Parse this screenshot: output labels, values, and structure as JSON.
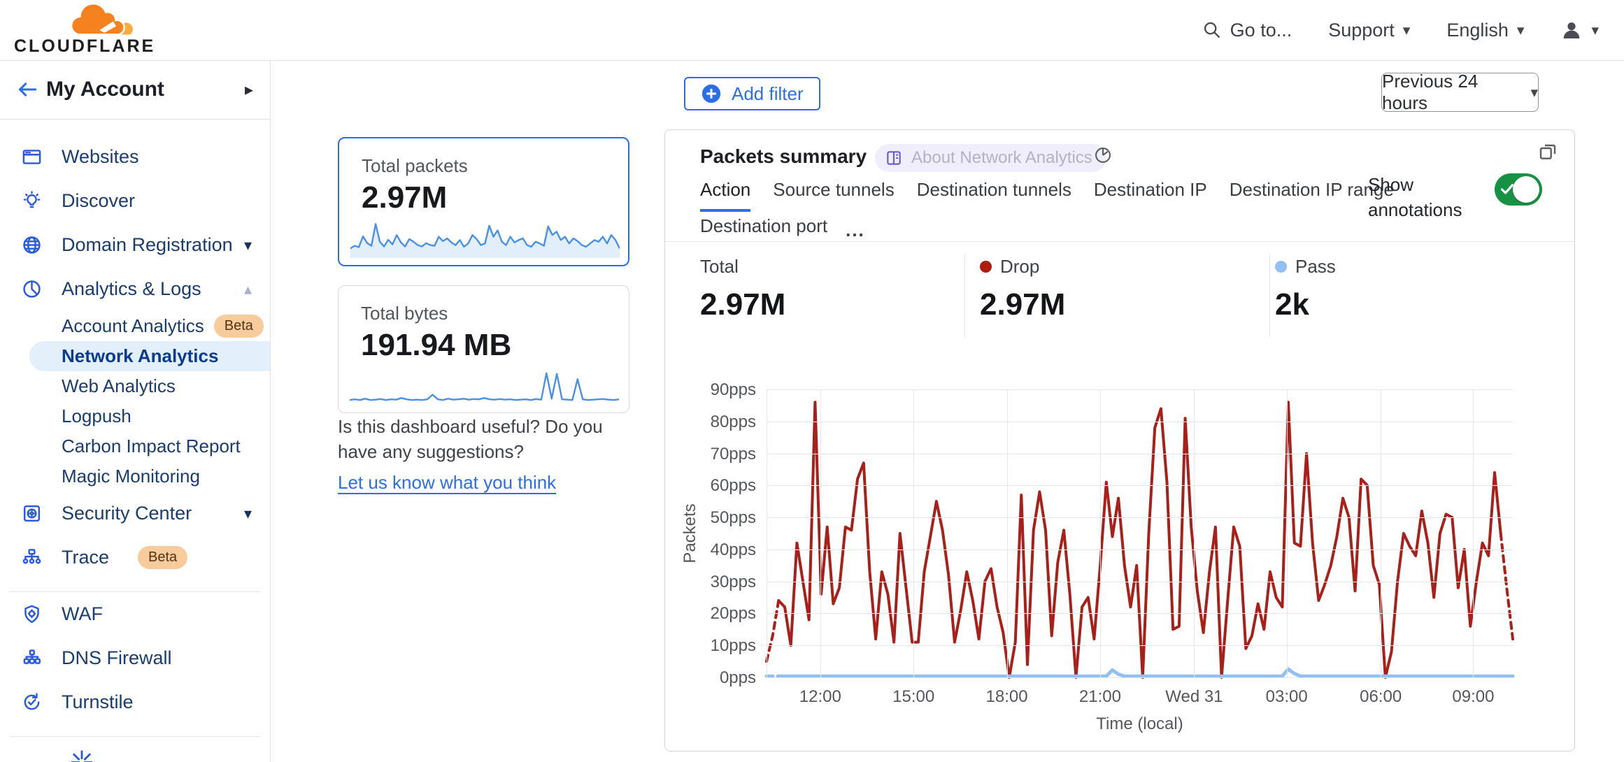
{
  "topbar": {
    "brand": "CLOUDFLARE",
    "goto_label": "Go to...",
    "support_label": "Support",
    "language_label": "English"
  },
  "sidebar": {
    "account_label": "My Account",
    "sections": [
      {
        "items": [
          {
            "id": "websites",
            "label": "Websites",
            "icon": "browser-icon"
          },
          {
            "id": "discover",
            "label": "Discover",
            "icon": "bulb-icon"
          },
          {
            "id": "domain-registration",
            "label": "Domain Registration",
            "icon": "globe-icon",
            "chevron": "down"
          },
          {
            "id": "analytics-logs",
            "label": "Analytics & Logs",
            "icon": "pie-chart-icon",
            "chevron": "up",
            "children": [
              {
                "id": "account-analytics",
                "label": "Account Analytics",
                "badge": "Beta"
              },
              {
                "id": "network-analytics",
                "label": "Network Analytics",
                "selected": true
              },
              {
                "id": "web-analytics",
                "label": "Web Analytics"
              },
              {
                "id": "logpush",
                "label": "Logpush"
              },
              {
                "id": "carbon-impact-report",
                "label": "Carbon Impact Report"
              },
              {
                "id": "magic-monitoring",
                "label": "Magic Monitoring"
              }
            ]
          },
          {
            "id": "security-center",
            "label": "Security Center",
            "icon": "safe-icon",
            "chevron": "down"
          },
          {
            "id": "trace",
            "label": "Trace",
            "icon": "trace-icon",
            "badge": "Beta"
          }
        ]
      },
      {
        "items": [
          {
            "id": "waf",
            "label": "WAF",
            "icon": "shield-gear-icon"
          },
          {
            "id": "dns-firewall",
            "label": "DNS Firewall",
            "icon": "hierarchy-icon"
          },
          {
            "id": "turnstile",
            "label": "Turnstile",
            "icon": "refresh-check-icon"
          }
        ]
      }
    ]
  },
  "summary_cards": [
    {
      "title": "Total packets",
      "value": "2.97M",
      "selected": true
    },
    {
      "title": "Total bytes",
      "value": "191.94 MB",
      "selected": false
    }
  ],
  "feedback": {
    "question": "Is this dashboard useful? Do you have any suggestions?",
    "link_label": "Let us know what you think"
  },
  "main": {
    "add_filter_label": "Add filter",
    "time_range_label": "Previous 24 hours",
    "panel": {
      "title": "Packets summary",
      "about_badge": "About Network Analytics",
      "tabs_row1": [
        "Action",
        "Source tunnels",
        "Destination tunnels",
        "Destination IP",
        "Destination IP range"
      ],
      "tabs_row2": [
        "Destination port"
      ],
      "more_label": "...",
      "active_tab": "Action",
      "show_annotations_label": "Show annotations",
      "totals": [
        {
          "label": "Total",
          "value": "2.97M",
          "dot": ""
        },
        {
          "label": "Drop",
          "value": "2.97M",
          "dot": "#b11b10"
        },
        {
          "label": "Pass",
          "value": "2k",
          "dot": "#93c0f2"
        }
      ]
    }
  },
  "colors": {
    "accent_blue": "#2b6ee8",
    "drop_red": "#a9201a",
    "pass_blue": "#93c0f2",
    "toggle_green": "#179245",
    "spark_blue": "#4a90e4"
  },
  "chart_data": [
    {
      "type": "line",
      "title": "Packets summary",
      "xlabel": "Time (local)",
      "ylabel": "Packets",
      "ylim": [
        0,
        90
      ],
      "grid": true,
      "ytick_labels": [
        "90pps",
        "80pps",
        "70pps",
        "60pps",
        "50pps",
        "40pps",
        "30pps",
        "20pps",
        "10pps",
        "0pps"
      ],
      "xticks": [
        {
          "label": "12:00",
          "pos": 7.2
        },
        {
          "label": "15:00",
          "pos": 19.7
        },
        {
          "label": "18:00",
          "pos": 32.2
        },
        {
          "label": "21:00",
          "pos": 44.7
        },
        {
          "label": "Wed 31",
          "pos": 57.3
        },
        {
          "label": "03:00",
          "pos": 69.7
        },
        {
          "label": "06:00",
          "pos": 82.3
        },
        {
          "label": "09:00",
          "pos": 94.7
        }
      ],
      "series": [
        {
          "name": "Drop",
          "color": "#a9201a",
          "dashed_head": 2,
          "dashed_tail": 2,
          "values": [
            5,
            13,
            24,
            22,
            10,
            42,
            30,
            18,
            86,
            26,
            47,
            23,
            28,
            47,
            46,
            62,
            67,
            33,
            12,
            33,
            26,
            11,
            45,
            28,
            11,
            11,
            33,
            44,
            55,
            46,
            32,
            11,
            21,
            33,
            24,
            12,
            30,
            34,
            22,
            14,
            0,
            11,
            57,
            4,
            46,
            58,
            46,
            13,
            36,
            46,
            26,
            0,
            22,
            25,
            12,
            35,
            61,
            44,
            56,
            35,
            22,
            35,
            0,
            45,
            78,
            84,
            61,
            15,
            16,
            81,
            47,
            27,
            14,
            33,
            47,
            0,
            24,
            47,
            41,
            9,
            13,
            23,
            15,
            33,
            25,
            22,
            86,
            42,
            41,
            70,
            42,
            24,
            29,
            35,
            44,
            56,
            50,
            27,
            62,
            60,
            35,
            29,
            0,
            8,
            30,
            45,
            41,
            38,
            52,
            42,
            25,
            45,
            51,
            50,
            28,
            40,
            16,
            30,
            42,
            38,
            64,
            45,
            28,
            12
          ]
        },
        {
          "name": "Pass",
          "color": "#93c0f2",
          "dashed_head": 2,
          "dashed_tail": 0,
          "values": [
            0.4,
            0.4,
            0.4,
            0.4,
            0.4,
            0.4,
            0.4,
            0.4,
            0.4,
            0.4,
            0.4,
            0.4,
            0.4,
            0.4,
            0.4,
            0.4,
            0.4,
            0.4,
            0.4,
            0.4,
            0.4,
            0.4,
            0.4,
            0.4,
            0.4,
            0.4,
            0.4,
            0.4,
            0.4,
            0.4,
            0.4,
            0.4,
            0.4,
            0.4,
            0.4,
            0.4,
            0.4,
            0.4,
            0.4,
            0.4,
            0.4,
            0.4,
            0.4,
            0.4,
            0.4,
            0.4,
            0.4,
            0.4,
            0.4,
            0.4,
            0.4,
            0.4,
            0.4,
            0.4,
            0.4,
            0.4,
            0.4,
            2.3,
            1.0,
            0.4,
            0.4,
            0.4,
            0.4,
            0.4,
            0.4,
            0.4,
            0.4,
            0.4,
            0.4,
            0.4,
            0.4,
            0.4,
            0.4,
            0.4,
            0.4,
            0.4,
            0.4,
            0.4,
            0.4,
            0.4,
            0.4,
            0.4,
            0.4,
            0.4,
            0.4,
            0.4,
            2.6,
            1.2,
            0.4,
            0.4,
            0.4,
            0.4,
            0.4,
            0.4,
            0.4,
            0.4,
            0.4,
            0.4,
            0.4,
            0.4,
            0.4,
            0.4,
            0.4,
            0.4,
            0.4,
            0.4,
            0.4,
            0.4,
            0.4,
            0.4,
            0.4,
            0.4,
            0.4,
            0.4,
            0.4,
            0.4,
            0.4,
            0.4,
            0.4,
            0.4,
            0.4,
            0.4,
            0.4,
            0.4
          ]
        }
      ]
    },
    {
      "type": "line",
      "title": "Total packets sparkline",
      "values": [
        22,
        30,
        26,
        58,
        38,
        30,
        95,
        42,
        28,
        48,
        34,
        62,
        40,
        28,
        50,
        42,
        32,
        28,
        38,
        32,
        30,
        57,
        44,
        52,
        40,
        32,
        47,
        27,
        37,
        62,
        50,
        32,
        37,
        90,
        57,
        76,
        42,
        32,
        57,
        40,
        47,
        52,
        32,
        27,
        42,
        37,
        30,
        88,
        62,
        72,
        47,
        57,
        37,
        52,
        44,
        32,
        27,
        37,
        47,
        42,
        57,
        37,
        62,
        47,
        22
      ]
    },
    {
      "type": "line",
      "title": "Total bytes sparkline",
      "values": [
        10,
        12,
        10,
        14,
        10,
        11,
        13,
        10,
        12,
        11,
        16,
        12,
        10,
        11,
        10,
        12,
        26,
        12,
        10,
        14,
        11,
        12,
        14,
        11,
        13,
        12,
        16,
        12,
        11,
        13,
        11,
        12,
        10,
        11,
        12,
        10,
        13,
        11,
        90,
        14,
        88,
        12,
        11,
        10,
        72,
        12,
        10,
        11,
        12,
        13,
        11,
        10,
        12
      ]
    }
  ]
}
